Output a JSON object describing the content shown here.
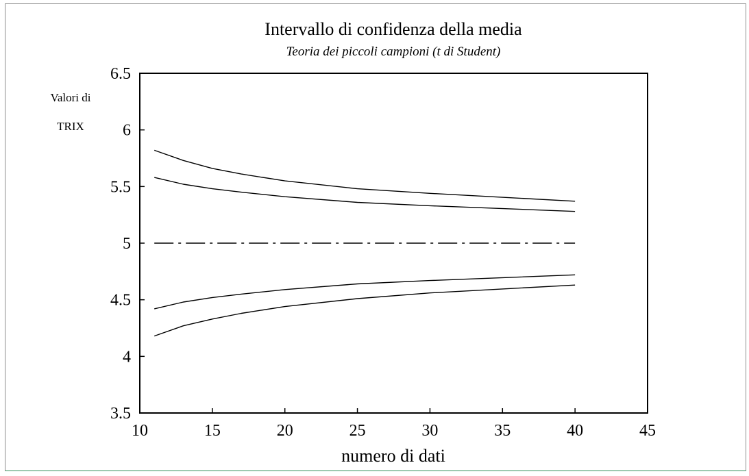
{
  "chart_data": {
    "type": "line",
    "title": "Intervallo di confidenza della media",
    "subtitle": "Teoria dei piccoli campioni (t di Student)",
    "xlabel": "numero di dati",
    "ylabel_line1": "Valori di",
    "ylabel_line2": "TRIX",
    "xlim": [
      10,
      45
    ],
    "ylim": [
      3.5,
      6.5
    ],
    "x_ticks": [
      10,
      15,
      20,
      25,
      30,
      35,
      40,
      45
    ],
    "y_ticks": [
      3.5,
      4,
      4.5,
      5,
      5.5,
      6,
      6.5
    ],
    "x_tick_labels": [
      "10",
      "15",
      "20",
      "25",
      "30",
      "35",
      "40",
      "45"
    ],
    "y_tick_labels": [
      "3.5",
      "4",
      "4.5",
      "5",
      "5.5",
      "6",
      "6.5"
    ],
    "grid": false,
    "series": [
      {
        "style": "solid",
        "x": [
          11,
          13,
          15,
          17,
          20,
          25,
          30,
          40
        ],
        "y": [
          5.82,
          5.73,
          5.66,
          5.61,
          5.55,
          5.48,
          5.44,
          5.37
        ]
      },
      {
        "style": "solid",
        "x": [
          11,
          13,
          15,
          17,
          20,
          25,
          30,
          40
        ],
        "y": [
          5.58,
          5.52,
          5.48,
          5.45,
          5.41,
          5.36,
          5.33,
          5.28
        ]
      },
      {
        "style": "dashdot",
        "x": [
          11,
          40
        ],
        "y": [
          5.0,
          5.0
        ]
      },
      {
        "style": "solid",
        "x": [
          11,
          13,
          15,
          17,
          20,
          25,
          30,
          40
        ],
        "y": [
          4.42,
          4.48,
          4.52,
          4.55,
          4.59,
          4.64,
          4.67,
          4.72
        ]
      },
      {
        "style": "solid",
        "x": [
          11,
          13,
          15,
          17,
          20,
          25,
          30,
          40
        ],
        "y": [
          4.18,
          4.27,
          4.33,
          4.38,
          4.44,
          4.51,
          4.56,
          4.63
        ]
      }
    ]
  }
}
